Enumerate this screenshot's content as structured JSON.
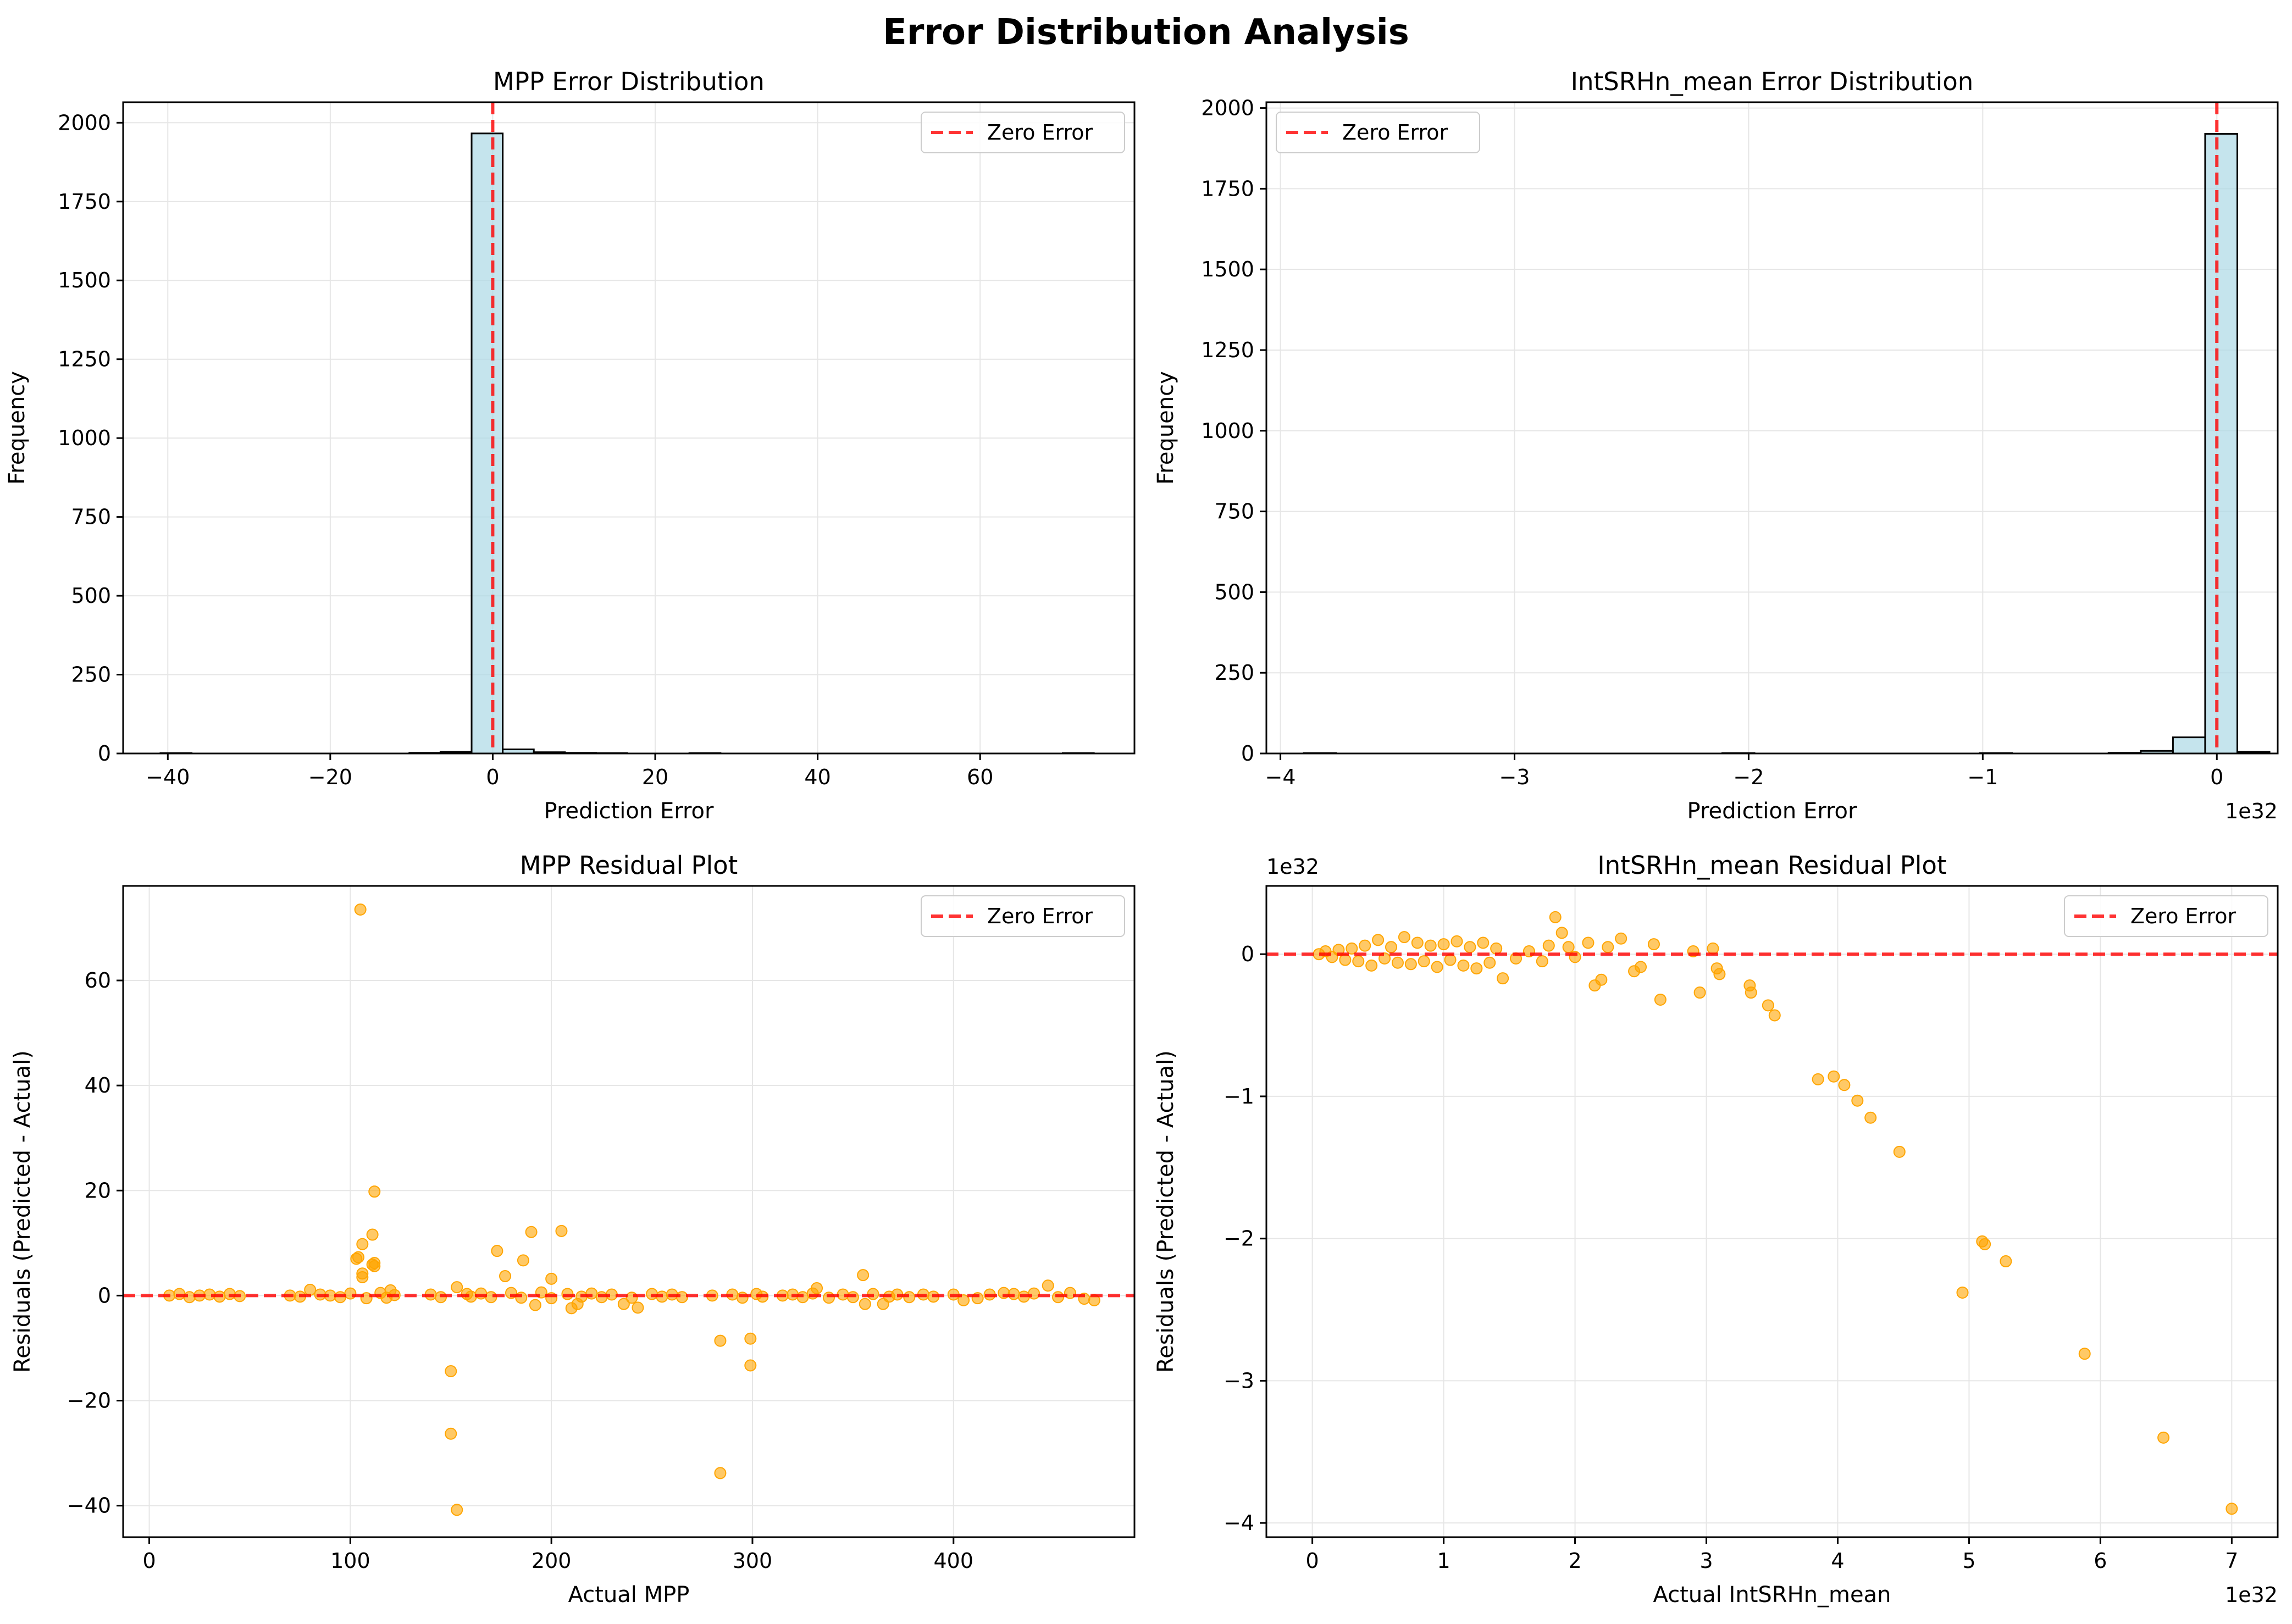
{
  "figure": {
    "suptitle": "Error Distribution Analysis"
  },
  "colors": {
    "hist_fill": "#add8e6",
    "hist_edge": "#000000",
    "zero_line": "#ff0000",
    "scatter": "#ffa500",
    "grid": "#e6e6e6"
  },
  "chart_data": [
    {
      "type": "bar",
      "title": "MPP Error Distribution",
      "xlabel": "Prediction Error",
      "ylabel": "Frequency",
      "xlim": [
        -45.5,
        79.0
      ],
      "ylim": [
        0,
        2065
      ],
      "xticks": [
        -40,
        -20,
        0,
        20,
        40,
        60
      ],
      "yticks": [
        0,
        250,
        500,
        750,
        1000,
        1250,
        1500,
        1750,
        2000
      ],
      "grid": true,
      "legend": {
        "position": "top-right",
        "label": "Zero Error"
      },
      "reference_line": {
        "orientation": "vertical",
        "value": 0,
        "label": "Zero Error"
      },
      "bins": {
        "start": -40.9,
        "width": 3.83,
        "count": 30
      },
      "counts": [
        1,
        0,
        0,
        0,
        0,
        0,
        0,
        0,
        2,
        5,
        1966,
        13,
        4,
        2,
        1,
        0,
        0,
        1,
        0,
        0,
        0,
        0,
        0,
        0,
        0,
        0,
        0,
        0,
        0,
        1
      ]
    },
    {
      "type": "bar",
      "title": "IntSRHn_mean Error Distribution",
      "xlabel": "Prediction Error",
      "ylabel": "Frequency",
      "offset_text": "1e32",
      "xlim": [
        -4.06,
        0.26
      ],
      "ylim": [
        0,
        2018
      ],
      "xticks": [
        -4,
        -3,
        -2,
        -1,
        0
      ],
      "xtick_labels": [
        "−4",
        "−3",
        "−2",
        "−1",
        "0"
      ],
      "yticks": [
        0,
        250,
        500,
        750,
        1000,
        1250,
        1500,
        1750,
        2000
      ],
      "grid": true,
      "legend": {
        "position": "top-left",
        "label": "Zero Error"
      },
      "reference_line": {
        "orientation": "vertical",
        "value": 0,
        "label": "Zero Error"
      },
      "bins": {
        "start": -3.9,
        "width": 0.1375,
        "count": 30
      },
      "counts": [
        1,
        0,
        0,
        0,
        0,
        0,
        0,
        0,
        0,
        0,
        0,
        0,
        0,
        1,
        0,
        0,
        0,
        0,
        0,
        0,
        0,
        1,
        0,
        0,
        0,
        2,
        8,
        50,
        1920,
        5
      ]
    },
    {
      "type": "scatter",
      "title": "MPP Residual Plot",
      "xlabel": "Actual MPP",
      "ylabel": "Residuals (Predicted - Actual)",
      "xlim": [
        -13,
        490
      ],
      "ylim": [
        -46,
        78
      ],
      "xticks": [
        0,
        100,
        200,
        300,
        400
      ],
      "yticks": [
        -40,
        -20,
        0,
        20,
        40,
        60
      ],
      "ytick_labels": [
        "−40",
        "−20",
        "0",
        "20",
        "40",
        "60"
      ],
      "grid": true,
      "legend": {
        "position": "top-right",
        "label": "Zero Error"
      },
      "reference_line": {
        "orientation": "horizontal",
        "value": 0,
        "label": "Zero Error"
      },
      "points": [
        [
          105,
          73.5
        ],
        [
          112,
          19.8
        ],
        [
          111,
          11.6
        ],
        [
          106,
          9.8
        ],
        [
          103,
          7.0
        ],
        [
          104,
          7.3
        ],
        [
          106,
          4.2
        ],
        [
          106,
          3.5
        ],
        [
          111,
          5.9
        ],
        [
          112,
          5.6
        ],
        [
          112,
          6.2
        ],
        [
          190,
          12.1
        ],
        [
          205,
          12.3
        ],
        [
          173,
          8.5
        ],
        [
          186,
          6.7
        ],
        [
          200,
          3.2
        ],
        [
          177,
          3.7
        ],
        [
          153,
          1.6
        ],
        [
          80,
          1.1
        ],
        [
          120,
          1.0
        ],
        [
          150,
          -14.4
        ],
        [
          150,
          -26.3
        ],
        [
          153,
          -40.8
        ],
        [
          284,
          -33.8
        ],
        [
          284,
          -8.6
        ],
        [
          299,
          -8.2
        ],
        [
          299,
          -13.3
        ],
        [
          332,
          1.4
        ],
        [
          355,
          3.9
        ],
        [
          447,
          1.9
        ],
        [
          356,
          -1.6
        ],
        [
          365,
          -1.6
        ],
        [
          243,
          -2.3
        ],
        [
          192,
          -1.8
        ],
        [
          210,
          -2.4
        ],
        [
          213,
          -1.6
        ],
        [
          236,
          -1.6
        ],
        [
          10,
          0
        ],
        [
          15,
          0.3
        ],
        [
          20,
          -0.3
        ],
        [
          25,
          0
        ],
        [
          30,
          0.2
        ],
        [
          35,
          -0.2
        ],
        [
          40,
          0.3
        ],
        [
          45,
          -0.1
        ],
        [
          70,
          0
        ],
        [
          75,
          -0.2
        ],
        [
          85,
          0.2
        ],
        [
          90,
          0
        ],
        [
          95,
          -0.3
        ],
        [
          100,
          0.4
        ],
        [
          108,
          -0.5
        ],
        [
          115,
          0.5
        ],
        [
          118,
          -0.4
        ],
        [
          122,
          0.1
        ],
        [
          140,
          0.2
        ],
        [
          145,
          -0.3
        ],
        [
          158,
          0.3
        ],
        [
          160,
          -0.2
        ],
        [
          165,
          0.4
        ],
        [
          170,
          -0.3
        ],
        [
          180,
          0.5
        ],
        [
          185,
          -0.4
        ],
        [
          195,
          0.6
        ],
        [
          200,
          -0.5
        ],
        [
          208,
          0.3
        ],
        [
          215,
          -0.2
        ],
        [
          220,
          0.4
        ],
        [
          225,
          -0.3
        ],
        [
          230,
          0.2
        ],
        [
          240,
          -0.4
        ],
        [
          250,
          0.3
        ],
        [
          255,
          -0.2
        ],
        [
          260,
          0.2
        ],
        [
          265,
          -0.3
        ],
        [
          280,
          0
        ],
        [
          290,
          0.2
        ],
        [
          295,
          -0.4
        ],
        [
          302,
          0.3
        ],
        [
          305,
          -0.2
        ],
        [
          315,
          0
        ],
        [
          320,
          0.2
        ],
        [
          325,
          -0.3
        ],
        [
          330,
          0.4
        ],
        [
          338,
          -0.4
        ],
        [
          345,
          0.2
        ],
        [
          350,
          -0.3
        ],
        [
          360,
          0.3
        ],
        [
          368,
          -0.2
        ],
        [
          372,
          0.2
        ],
        [
          378,
          -0.3
        ],
        [
          385,
          0.2
        ],
        [
          390,
          -0.2
        ],
        [
          400,
          0.2
        ],
        [
          405,
          -0.9
        ],
        [
          412,
          -0.5
        ],
        [
          418,
          0.2
        ],
        [
          425,
          0.5
        ],
        [
          430,
          0.3
        ],
        [
          435,
          -0.2
        ],
        [
          440,
          0.4
        ],
        [
          452,
          -0.3
        ],
        [
          458,
          0.5
        ],
        [
          465,
          -0.6
        ],
        [
          470,
          -0.9
        ]
      ]
    },
    {
      "type": "scatter",
      "title": "IntSRHn_mean Residual Plot",
      "xlabel": "Actual IntSRHn_mean",
      "ylabel": "Residuals (Predicted - Actual)",
      "x_offset_text": "1e32",
      "y_offset_text": "1e32",
      "xlim": [
        -0.35,
        7.35
      ],
      "ylim": [
        -4.1,
        0.48
      ],
      "xticks": [
        0,
        1,
        2,
        3,
        4,
        5,
        6,
        7
      ],
      "yticks": [
        -4,
        -3,
        -2,
        -1,
        0
      ],
      "ytick_labels": [
        "−4",
        "−3",
        "−2",
        "−1",
        "0"
      ],
      "grid": true,
      "legend": {
        "position": "top-right",
        "label": "Zero Error"
      },
      "reference_line": {
        "orientation": "horizontal",
        "value": 0,
        "label": "Zero Error"
      },
      "points": [
        [
          0.05,
          0
        ],
        [
          0.1,
          0.02
        ],
        [
          0.15,
          -0.02
        ],
        [
          0.2,
          0.03
        ],
        [
          0.25,
          -0.04
        ],
        [
          0.3,
          0.04
        ],
        [
          0.35,
          -0.05
        ],
        [
          0.4,
          0.06
        ],
        [
          0.45,
          -0.08
        ],
        [
          0.5,
          0.1
        ],
        [
          0.55,
          -0.03
        ],
        [
          0.6,
          0.05
        ],
        [
          0.65,
          -0.06
        ],
        [
          0.7,
          0.12
        ],
        [
          0.75,
          -0.07
        ],
        [
          0.8,
          0.08
        ],
        [
          0.85,
          -0.05
        ],
        [
          0.9,
          0.06
        ],
        [
          0.95,
          -0.09
        ],
        [
          1.0,
          0.07
        ],
        [
          1.05,
          -0.04
        ],
        [
          1.1,
          0.09
        ],
        [
          1.15,
          -0.08
        ],
        [
          1.2,
          0.05
        ],
        [
          1.25,
          -0.1
        ],
        [
          1.3,
          0.08
        ],
        [
          1.35,
          -0.06
        ],
        [
          1.4,
          0.04
        ],
        [
          1.45,
          -0.17
        ],
        [
          1.55,
          -0.03
        ],
        [
          1.65,
          0.02
        ],
        [
          1.75,
          -0.05
        ],
        [
          1.8,
          0.06
        ],
        [
          1.85,
          0.26
        ],
        [
          1.9,
          0.15
        ],
        [
          1.95,
          0.05
        ],
        [
          2.0,
          -0.02
        ],
        [
          2.1,
          0.08
        ],
        [
          2.15,
          -0.22
        ],
        [
          2.2,
          -0.18
        ],
        [
          2.25,
          0.05
        ],
        [
          2.35,
          0.11
        ],
        [
          2.45,
          -0.12
        ],
        [
          2.5,
          -0.09
        ],
        [
          2.6,
          0.07
        ],
        [
          2.65,
          -0.32
        ],
        [
          2.9,
          0.02
        ],
        [
          2.95,
          -0.27
        ],
        [
          3.05,
          0.04
        ],
        [
          3.08,
          -0.1
        ],
        [
          3.1,
          -0.14
        ],
        [
          3.33,
          -0.22
        ],
        [
          3.34,
          -0.27
        ],
        [
          3.47,
          -0.36
        ],
        [
          3.52,
          -0.43
        ],
        [
          3.85,
          -0.88
        ],
        [
          3.97,
          -0.86
        ],
        [
          4.05,
          -0.92
        ],
        [
          4.15,
          -1.03
        ],
        [
          4.25,
          -1.15
        ],
        [
          4.47,
          -1.39
        ],
        [
          4.95,
          -2.38
        ],
        [
          5.1,
          -2.02
        ],
        [
          5.12,
          -2.04
        ],
        [
          5.28,
          -2.16
        ],
        [
          5.88,
          -2.81
        ],
        [
          6.48,
          -3.4
        ],
        [
          7.0,
          -3.9
        ]
      ]
    }
  ]
}
